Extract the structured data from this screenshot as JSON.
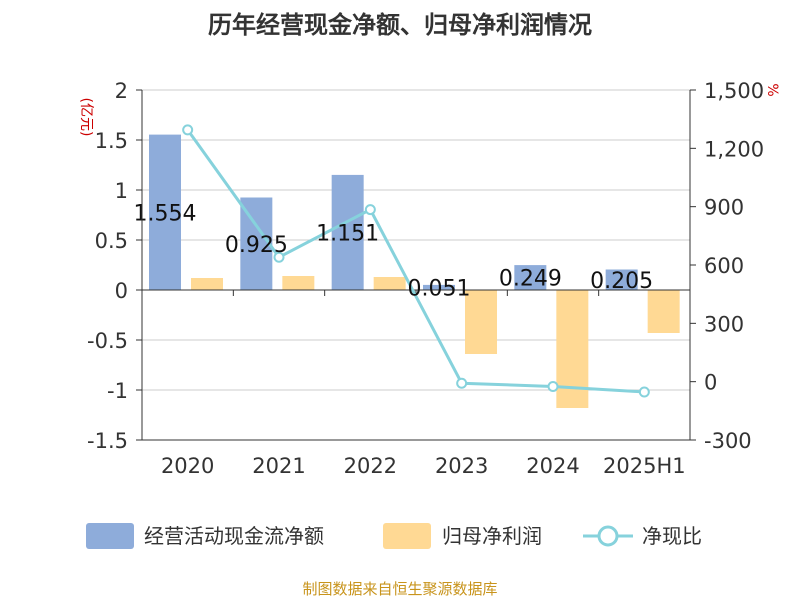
{
  "chart_data": {
    "type": "bar",
    "title": "历年经营现金净额、归母净利润情况",
    "categories": [
      "2020",
      "2021",
      "2022",
      "2023",
      "2024",
      "2025H1"
    ],
    "series": [
      {
        "name": "经营活动现金流净额",
        "type": "bar",
        "axis": "left",
        "color": "#8eacda",
        "values": [
          1.554,
          0.925,
          1.151,
          0.051,
          0.249,
          0.205
        ],
        "labels": [
          "1.554",
          "0.925",
          "1.151",
          "0.051",
          "0.249",
          "0.205"
        ]
      },
      {
        "name": "归母净利润",
        "type": "bar",
        "axis": "left",
        "color": "#ffd994",
        "values": [
          0.12,
          0.14,
          0.13,
          -0.64,
          -1.18,
          -0.43
        ]
      },
      {
        "name": "净现比",
        "type": "line",
        "axis": "right",
        "color": "#86d2dc",
        "values": [
          1295,
          640,
          885,
          -8,
          -25,
          -53
        ]
      }
    ],
    "left_axis": {
      "unit": "(亿元)",
      "ylim": [
        -1.5,
        2
      ],
      "ticks": [
        2,
        1.5,
        1,
        0.5,
        0,
        -0.5,
        -1,
        -1.5
      ],
      "tick_labels": [
        "2",
        "1.5",
        "1",
        "0.5",
        "0",
        "-0.5",
        "-1",
        "-1.5"
      ]
    },
    "right_axis": {
      "unit": "%",
      "ylim": [
        -300,
        1500
      ],
      "ticks": [
        1500,
        1200,
        900,
        600,
        300,
        0,
        -300
      ],
      "tick_labels": [
        "1,500",
        "1,200",
        "900",
        "600",
        "300",
        "0",
        "-300"
      ]
    },
    "grid": true,
    "legend_position": "bottom",
    "source": "制图数据来自恒生聚源数据库"
  }
}
